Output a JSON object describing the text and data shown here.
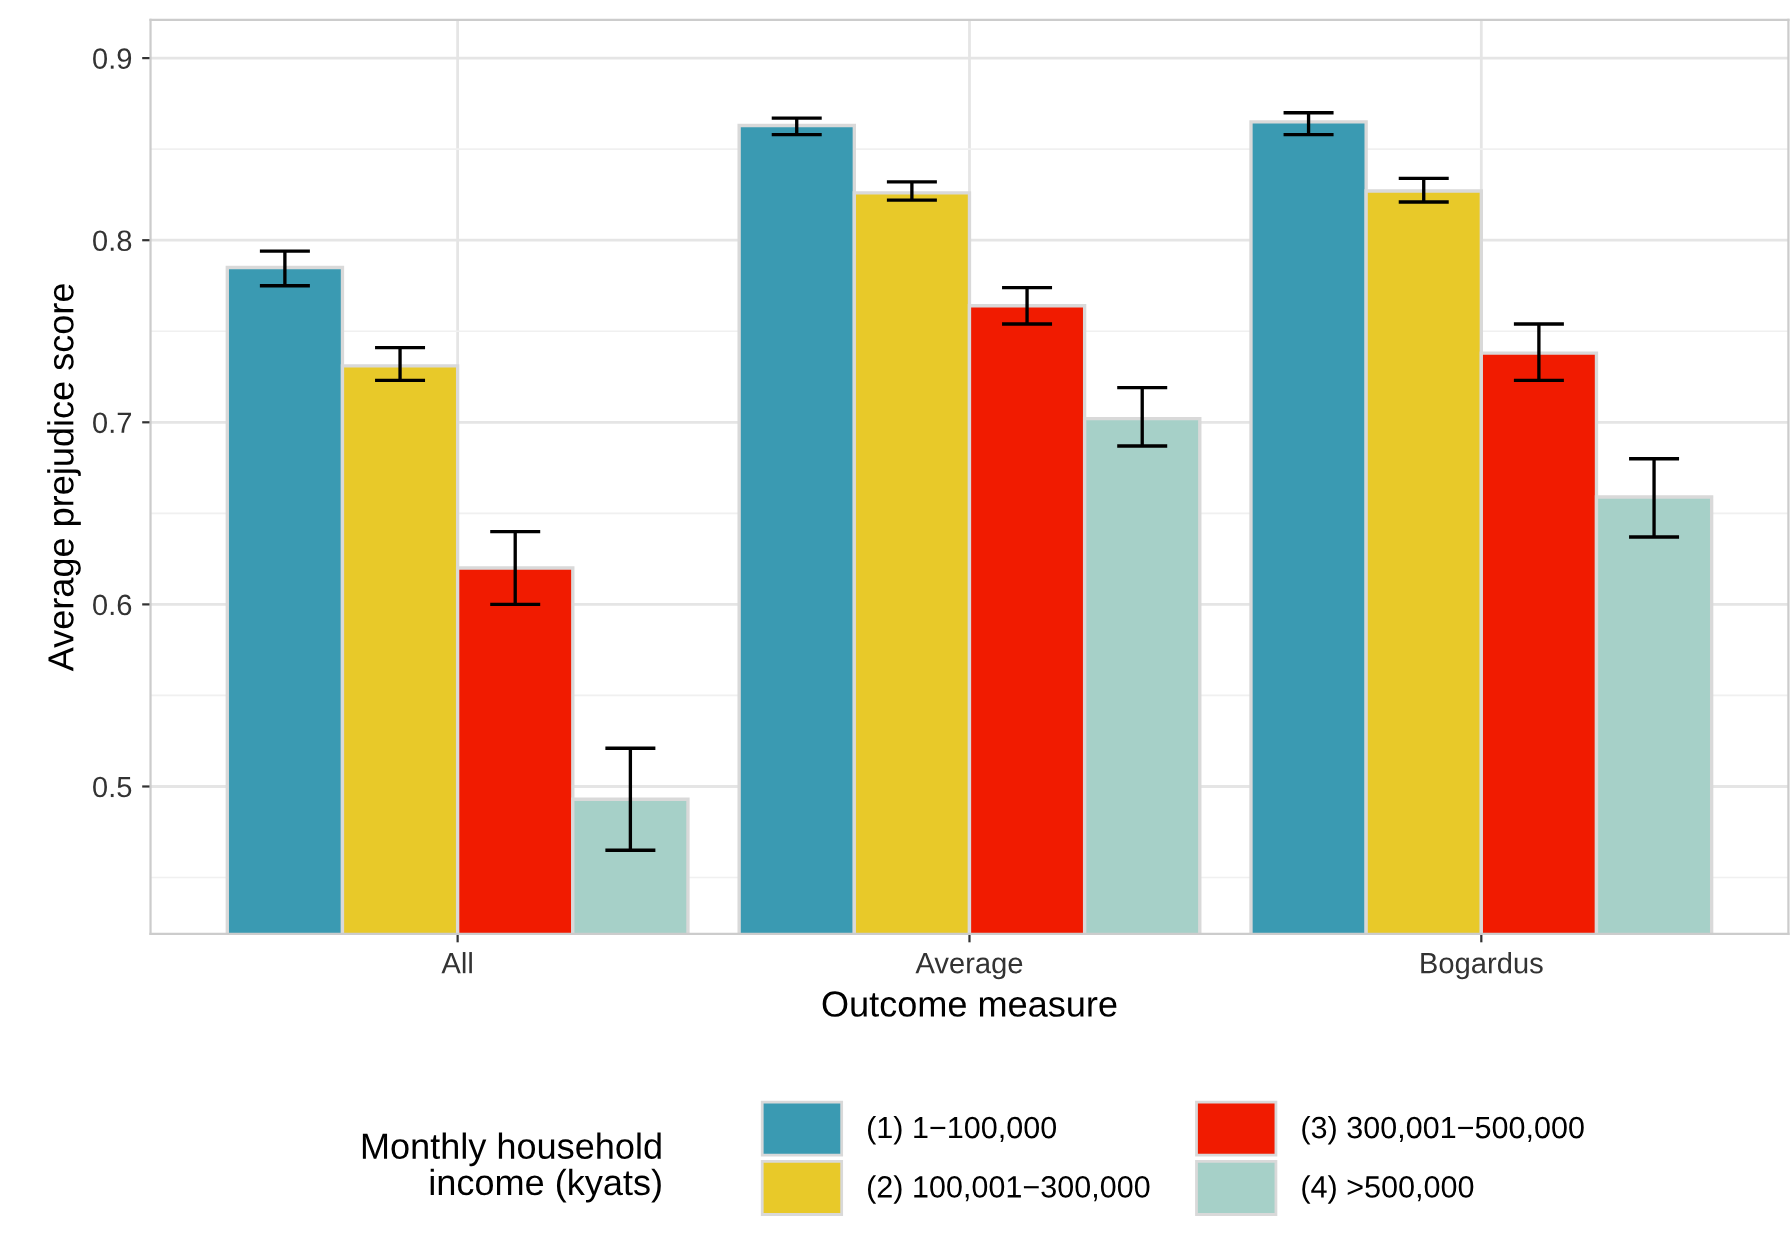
{
  "chart_data": {
    "type": "bar",
    "xlabel": "Outcome measure",
    "ylabel": "Average prejudice score",
    "legend_title": "Monthly household\nincome (kyats)",
    "categories": [
      "All",
      "Average",
      "Bogardus"
    ],
    "series": [
      {
        "name": "(1) 1−100,000",
        "color": "#3a9ab2",
        "values": [
          0.785,
          0.863,
          0.865
        ],
        "errors": [
          [
            0.775,
            0.794
          ],
          [
            0.858,
            0.867
          ],
          [
            0.858,
            0.87
          ]
        ]
      },
      {
        "name": "(2) 100,001−300,000",
        "color": "#e8c929",
        "values": [
          0.731,
          0.826,
          0.827
        ],
        "errors": [
          [
            0.723,
            0.741
          ],
          [
            0.822,
            0.832
          ],
          [
            0.821,
            0.834
          ]
        ]
      },
      {
        "name": "(3) 300,001−500,000",
        "color": "#f11b00",
        "values": [
          0.62,
          0.764,
          0.738
        ],
        "errors": [
          [
            0.6,
            0.64
          ],
          [
            0.754,
            0.774
          ],
          [
            0.723,
            0.754
          ]
        ]
      },
      {
        "name": "(4) >500,000",
        "color": "#a6d0c8",
        "values": [
          0.493,
          0.702,
          0.659
        ],
        "errors": [
          [
            0.465,
            0.521
          ],
          [
            0.687,
            0.719
          ],
          [
            0.637,
            0.68
          ]
        ]
      }
    ],
    "ylim": [
      0.419,
      0.921
    ],
    "yticks": [
      {
        "value": 0.45,
        "label": null
      },
      0.5,
      {
        "value": 0.55,
        "label": null
      },
      0.6,
      {
        "value": 0.65,
        "label": null
      },
      0.7,
      {
        "value": 0.75,
        "label": null
      },
      0.8,
      {
        "value": 0.85,
        "label": null
      },
      0.9
    ],
    "grid": true,
    "legend": "bottom"
  }
}
